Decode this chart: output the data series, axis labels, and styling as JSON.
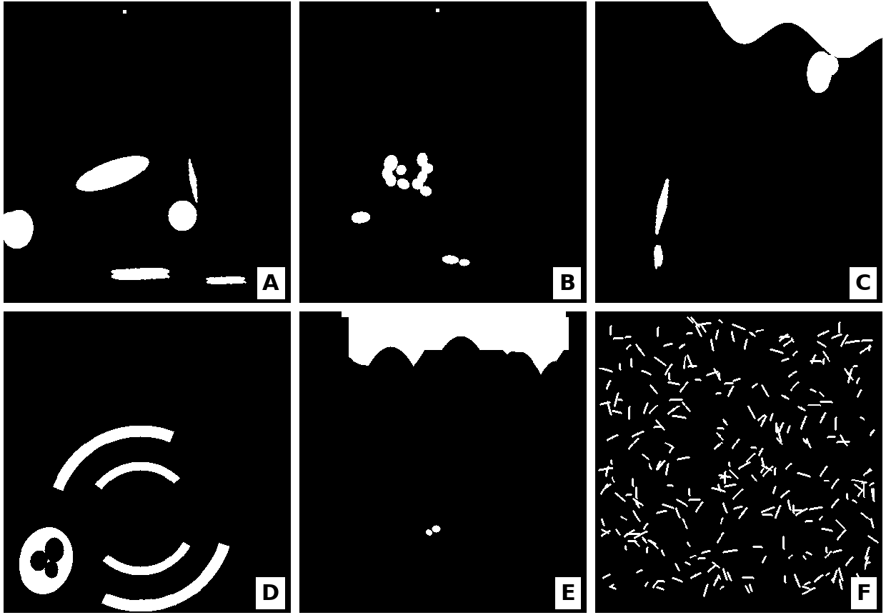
{
  "figure_width": 12.4,
  "figure_height": 8.62,
  "dpi": 100,
  "nrows": 2,
  "ncols": 3,
  "labels": [
    "A",
    "B",
    "C",
    "D",
    "E",
    "F"
  ],
  "bg_color": "#000000",
  "label_box_color": "#ffffff",
  "label_text_color": "#000000",
  "label_fontsize": 22,
  "outer_bg": "#ffffff",
  "hspace": 0.03,
  "wspace": 0.03
}
